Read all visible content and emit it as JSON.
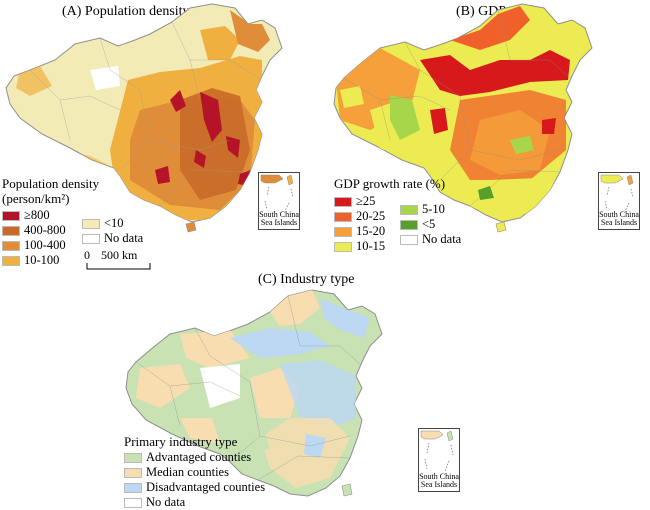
{
  "panel_a": {
    "title": "(A) Population density",
    "legend_title_line1": "Population density",
    "legend_title_line2": "(person/km²)",
    "categories": [
      {
        "label": "≥800",
        "color": "#b51328"
      },
      {
        "label": "400-800",
        "color": "#c96a28"
      },
      {
        "label": "100-400",
        "color": "#e08d3a"
      },
      {
        "label": "10-100",
        "color": "#f0b040"
      },
      {
        "label": "<10",
        "color": "#f3ebb5"
      },
      {
        "label": "No data",
        "color": "#ffffff"
      }
    ],
    "scale_zero": "0",
    "scale_label": "500 km"
  },
  "panel_b": {
    "title": "(B) GDP",
    "legend_title": "GDP growth rate (%)",
    "categories": [
      {
        "label": "≥25",
        "color": "#d7191c"
      },
      {
        "label": "20-25",
        "color": "#f0602a"
      },
      {
        "label": "15-20",
        "color": "#f5a03a"
      },
      {
        "label": "10-15",
        "color": "#ecec52"
      },
      {
        "label": "5-10",
        "color": "#a8d64a"
      },
      {
        "label": "<5",
        "color": "#56a02a"
      },
      {
        "label": "No data",
        "color": "#ffffff"
      }
    ]
  },
  "panel_c": {
    "title": "(C) Industry type",
    "legend_title": "Primary industry type",
    "categories": [
      {
        "label": "Advantaged counties",
        "color": "#c9e2b4"
      },
      {
        "label": "Median counties",
        "color": "#f7ddb0"
      },
      {
        "label": "Disadvantaged counties",
        "color": "#bcd8f2"
      },
      {
        "label": "No data",
        "color": "#ffffff"
      }
    ]
  },
  "inset": {
    "label_line1": "South China",
    "label_line2": "Sea Islands"
  }
}
